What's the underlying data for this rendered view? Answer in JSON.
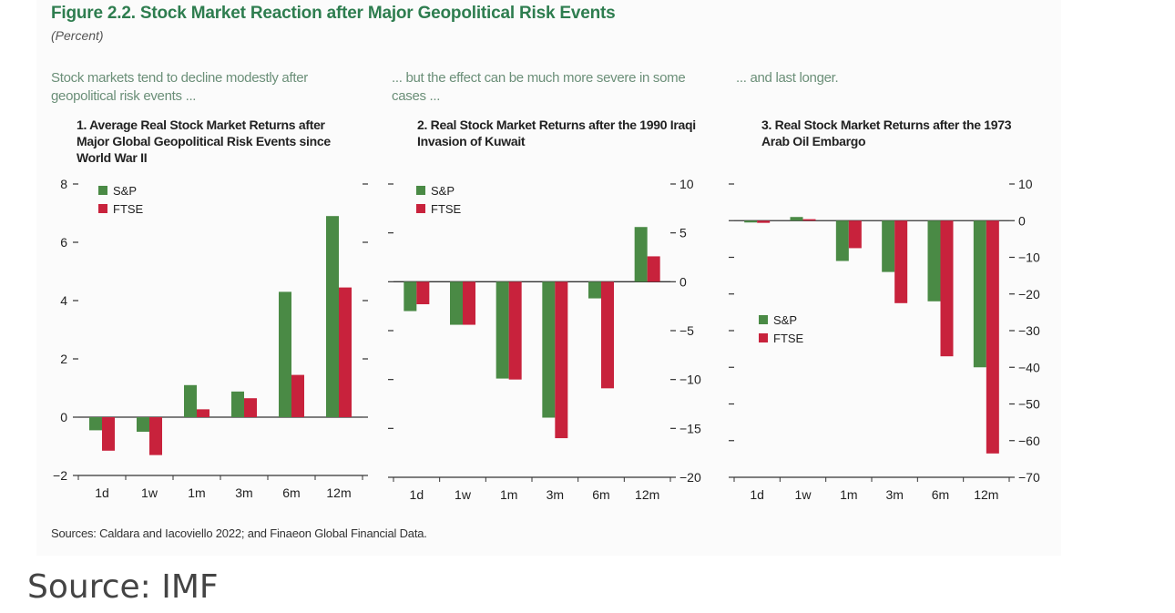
{
  "figure": {
    "title": "Figure 2.2. Stock Market Reaction after Major Geopolitical Risk Events",
    "subtitle": "(Percent)",
    "sources": "Sources: Caldara and Iacoviello 2022; and Finaeon Global Financial Data."
  },
  "caption": "Source: IMF",
  "colors": {
    "sp": "#4a8a45",
    "ftse": "#c8223c",
    "title": "#2e7d4f",
    "lead": "#6b8f78"
  },
  "panels": [
    {
      "lead": "Stock markets tend to decline modestly after geopolitical risk events ...",
      "title": "1. Average Real Stock Market Returns after Major Global Geopolitical Risk Events since World War II"
    },
    {
      "lead": "... but the effect can be much more severe in some cases ...",
      "title": "2. Real Stock Market Returns after the 1990 Iraqi Invasion of Kuwait"
    },
    {
      "lead": "... and last longer.",
      "title": "3. Real Stock Market Returns after the 1973 Arab Oil Embargo"
    }
  ],
  "chart_data": [
    {
      "type": "bar",
      "categories": [
        "1d",
        "1w",
        "1m",
        "3m",
        "6m",
        "12m"
      ],
      "series": [
        {
          "name": "S&P",
          "values": [
            -0.45,
            -0.5,
            1.1,
            0.88,
            4.3,
            6.9
          ]
        },
        {
          "name": "FTSE",
          "values": [
            -1.15,
            -1.3,
            0.27,
            0.65,
            1.45,
            4.45
          ]
        }
      ],
      "ylim": [
        -2,
        8
      ],
      "yticks": [
        -2,
        0,
        2,
        4,
        6,
        8
      ],
      "ytick_labels": [
        "−2",
        "0",
        "2",
        "4",
        "6",
        "8"
      ],
      "axis_side": "left",
      "legend": "top-left"
    },
    {
      "type": "bar",
      "categories": [
        "1d",
        "1w",
        "1m",
        "3m",
        "6m",
        "12m"
      ],
      "series": [
        {
          "name": "S&P",
          "values": [
            -3.0,
            -4.4,
            -9.9,
            -13.9,
            -1.7,
            5.6
          ]
        },
        {
          "name": "FTSE",
          "values": [
            -2.3,
            -4.4,
            -10.0,
            -16.0,
            -10.9,
            2.6
          ]
        }
      ],
      "ylim": [
        -20,
        10
      ],
      "yticks": [
        -20,
        -15,
        -10,
        -5,
        0,
        5,
        10
      ],
      "ytick_labels": [
        "−20",
        "−15",
        "−10",
        "−5",
        "0",
        "5",
        "10"
      ],
      "axis_side": "right",
      "legend": "top-left"
    },
    {
      "type": "bar",
      "categories": [
        "1d",
        "1w",
        "1m",
        "3m",
        "6m",
        "12m"
      ],
      "series": [
        {
          "name": "S&P",
          "values": [
            -0.5,
            1.0,
            -11.0,
            -14.0,
            -22.0,
            -40.0
          ]
        },
        {
          "name": "FTSE",
          "values": [
            -0.6,
            0.4,
            -7.5,
            -22.5,
            -37.0,
            -63.5
          ]
        }
      ],
      "ylim": [
        -70,
        10
      ],
      "yticks": [
        -70,
        -60,
        -50,
        -40,
        -30,
        -20,
        -10,
        0,
        10
      ],
      "ytick_labels": [
        "−70",
        "−60",
        "−50",
        "−40",
        "−30",
        "−20",
        "−10",
        "0",
        "10"
      ],
      "axis_side": "right",
      "legend": "middle-left"
    }
  ]
}
